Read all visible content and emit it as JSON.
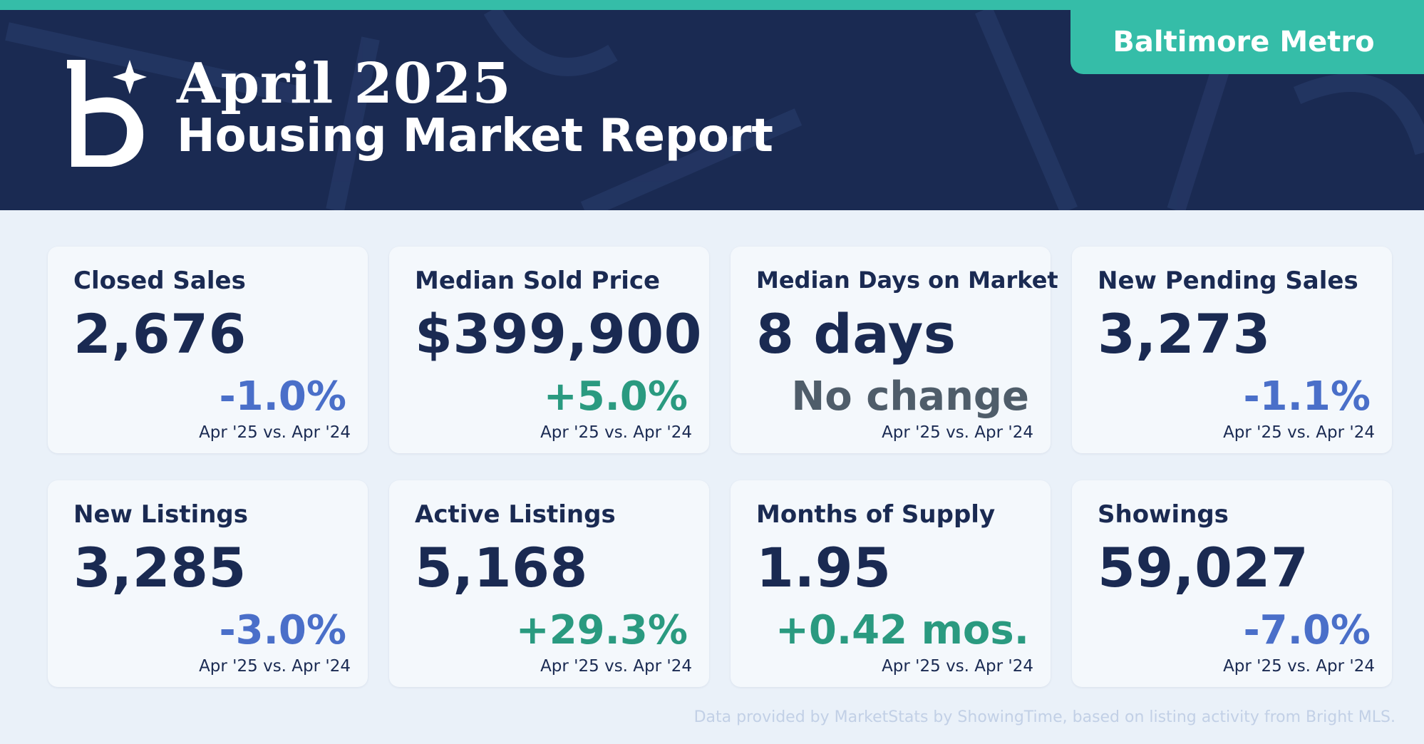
{
  "header": {
    "title_year": "April 2025",
    "title_sub": "Housing Market Report",
    "region": "Baltimore Metro",
    "logo_icon": "bright-mls-b-sparkle-icon"
  },
  "colors": {
    "navy": "#1a2a52",
    "teal": "#35bda8",
    "negative": "#4a6fc9",
    "positive": "#2a9a80",
    "neutral": "#4f5d6a",
    "background": "#eaf1f9"
  },
  "cards": [
    {
      "label": "Closed Sales",
      "value": "2,676",
      "change": "-1.0%",
      "trend": "negative",
      "compare": "Apr '25 vs. Apr '24"
    },
    {
      "label": "Median Sold Price",
      "value": "$399,900",
      "change": "+5.0%",
      "trend": "positive",
      "compare": "Apr '25 vs. Apr '24"
    },
    {
      "label": "Median Days on Market",
      "value": "8 days",
      "change": "No change",
      "trend": "neutral",
      "compare": "Apr '25 vs. Apr '24"
    },
    {
      "label": "New Pending Sales",
      "value": "3,273",
      "change": "-1.1%",
      "trend": "negative",
      "compare": "Apr '25 vs. Apr '24"
    },
    {
      "label": "New Listings",
      "value": "3,285",
      "change": "-3.0%",
      "trend": "negative",
      "compare": "Apr '25 vs. Apr '24"
    },
    {
      "label": "Active Listings",
      "value": "5,168",
      "change": "+29.3%",
      "trend": "positive",
      "compare": "Apr '25 vs. Apr '24"
    },
    {
      "label": "Months of Supply",
      "value": "1.95",
      "change": "+0.42 mos.",
      "trend": "positive",
      "compare": "Apr '25 vs. Apr '24"
    },
    {
      "label": "Showings",
      "value": "59,027",
      "change": "-7.0%",
      "trend": "negative",
      "compare": "Apr '25 vs. Apr '24"
    }
  ],
  "footer": {
    "note": "Data provided by MarketStats by ShowingTime, based on listing activity from Bright MLS."
  }
}
